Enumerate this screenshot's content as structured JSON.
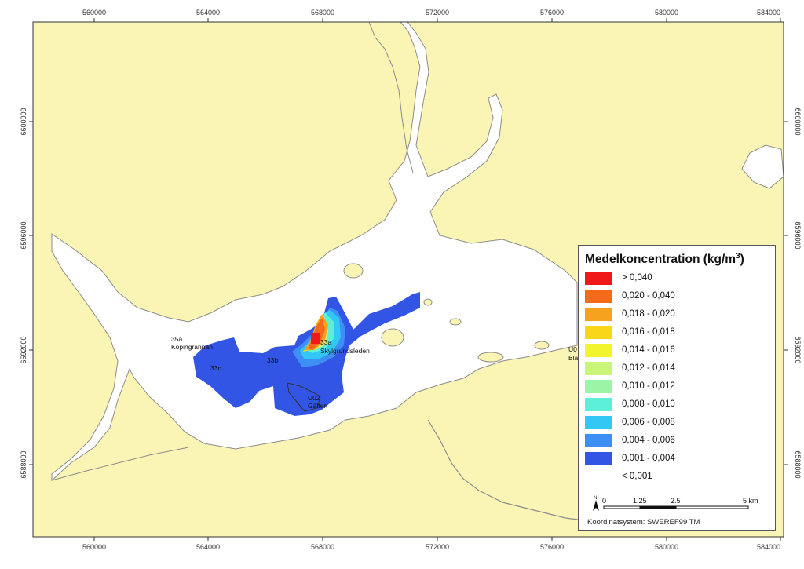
{
  "map": {
    "x_ticks": [
      "560000",
      "564000",
      "568000",
      "572000",
      "576000",
      "580000",
      "584000"
    ],
    "y_ticks": [
      "6600000",
      "6596000",
      "6592000",
      "6588000"
    ],
    "places": [
      {
        "code": "35a",
        "name": "Köpingrännan"
      },
      {
        "code": "33a",
        "name": "Skylgrundsleden"
      },
      {
        "code": "33b",
        "name": ""
      },
      {
        "code": "33c",
        "name": ""
      },
      {
        "code": "U02",
        "name": "Gälten"
      },
      {
        "code": "U0",
        "name": "Bla"
      }
    ],
    "colors": {
      "land": "#FAF5B4",
      "water": "#FFFFFF",
      "shoreline": "#8C8C8C"
    }
  },
  "legend": {
    "title": "Medelkoncentration (kg/m",
    "title_sup": "3",
    "title_end": ")",
    "classes": [
      {
        "label": "> 0,040",
        "color": "#F01818"
      },
      {
        "label": "0,020 - 0,040",
        "color": "#F5691B"
      },
      {
        "label": "0,018 - 0,020",
        "color": "#F7A21E"
      },
      {
        "label": "0,016 - 0,018",
        "color": "#FAD619"
      },
      {
        "label": "0,014 - 0,016",
        "color": "#F2F52E"
      },
      {
        "label": "0,012 - 0,014",
        "color": "#C8F57A"
      },
      {
        "label": "0,010 - 0,012",
        "color": "#9CF5A6"
      },
      {
        "label": "0,008 - 0,010",
        "color": "#5CF0D8"
      },
      {
        "label": "0,006 - 0,008",
        "color": "#33C7F5"
      },
      {
        "label": "0,004 - 0,006",
        "color": "#3D8FF5"
      },
      {
        "label": "0,001 - 0,004",
        "color": "#3355E6"
      },
      {
        "label": "< 0,001",
        "color": ""
      }
    ],
    "north": "N",
    "scale_labels": [
      "0",
      "1.25",
      "2.5",
      "5 km"
    ],
    "crs": "Koordinatsystem: SWEREF99 TM"
  }
}
